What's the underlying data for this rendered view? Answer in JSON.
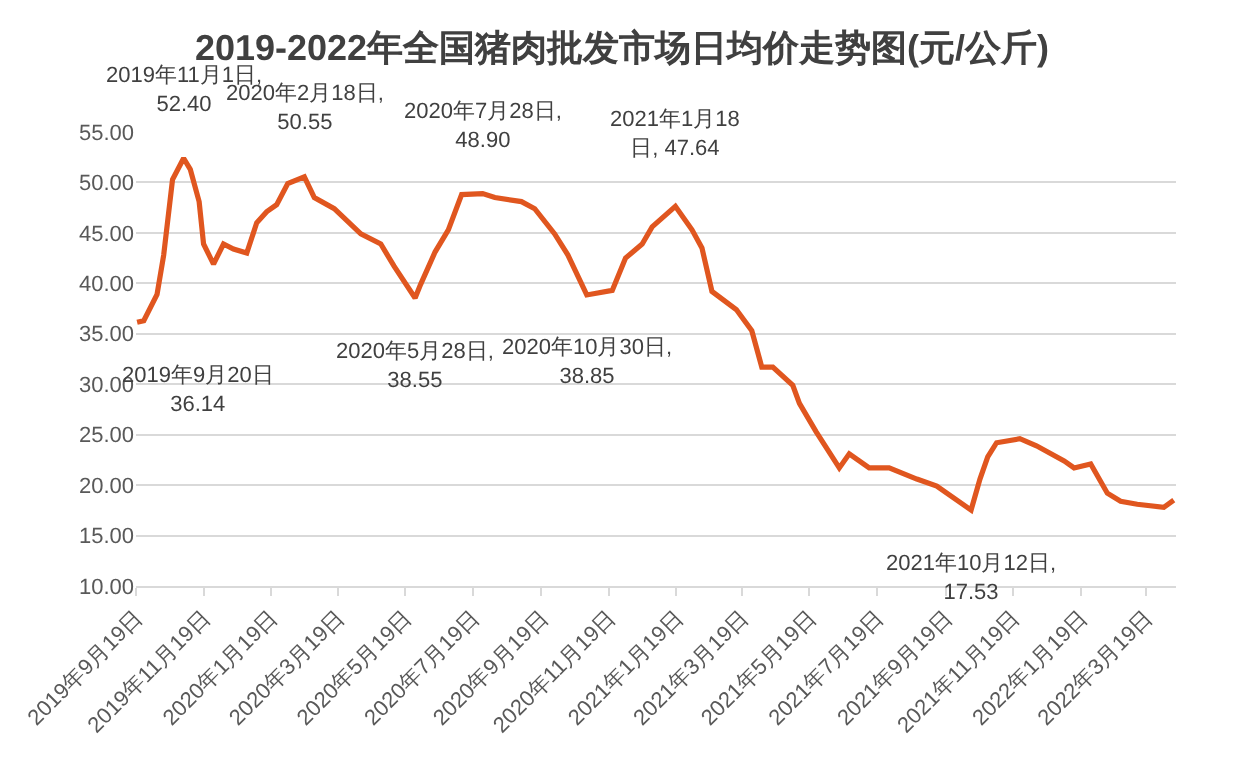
{
  "chart_data": {
    "type": "line",
    "title": "2019-2022年全国猪肉批发市场日均价走势图(元/公斤)",
    "x": [
      "2019-09-20",
      "2019-09-26",
      "2019-10-08",
      "2019-10-14",
      "2019-10-22",
      "2019-11-01",
      "2019-11-07",
      "2019-11-15",
      "2019-11-19",
      "2019-11-28",
      "2019-12-07",
      "2019-12-16",
      "2019-12-28",
      "2020-01-06",
      "2020-01-15",
      "2020-01-24",
      "2020-02-03",
      "2020-02-18",
      "2020-02-27",
      "2020-03-16",
      "2020-04-09",
      "2020-04-27",
      "2020-05-09",
      "2020-05-28",
      "2020-06-02",
      "2020-06-15",
      "2020-06-27",
      "2020-07-09",
      "2020-07-28",
      "2020-08-08",
      "2020-09-01",
      "2020-09-13",
      "2020-10-01",
      "2020-10-13",
      "2020-10-30",
      "2020-11-22",
      "2020-12-04",
      "2020-12-19",
      "2020-12-28",
      "2021-01-18",
      "2021-02-02",
      "2021-02-11",
      "2021-02-20",
      "2021-03-14",
      "2021-03-28",
      "2021-04-06",
      "2021-04-16",
      "2021-05-04",
      "2021-05-10",
      "2021-05-25",
      "2021-06-15",
      "2021-06-24",
      "2021-07-12",
      "2021-07-30",
      "2021-08-24",
      "2021-09-11",
      "2021-10-12",
      "2021-10-20",
      "2021-10-27",
      "2021-11-04",
      "2021-11-25",
      "2021-12-10",
      "2022-01-04",
      "2022-01-13",
      "2022-01-28",
      "2022-02-12",
      "2022-02-24",
      "2022-03-11",
      "2022-04-04",
      "2022-04-13"
    ],
    "series": [
      {
        "color": "#e0561f",
        "values": [
          36.14,
          36.3,
          38.9,
          42.8,
          50.3,
          52.4,
          51.3,
          48.1,
          43.9,
          41.9,
          43.9,
          43.4,
          43.0,
          46.0,
          47.1,
          47.8,
          49.9,
          50.55,
          48.5,
          47.4,
          44.9,
          43.9,
          41.7,
          38.55,
          39.9,
          43.1,
          45.3,
          48.8,
          48.9,
          48.5,
          48.1,
          47.4,
          44.9,
          42.8,
          38.85,
          39.3,
          42.5,
          43.9,
          45.6,
          47.64,
          45.3,
          43.5,
          39.2,
          37.4,
          35.3,
          31.7,
          31.7,
          29.9,
          28.1,
          25.3,
          21.7,
          23.1,
          21.7,
          21.7,
          20.6,
          19.9,
          17.53,
          20.6,
          22.8,
          24.2,
          24.6,
          23.9,
          22.4,
          21.7,
          22.1,
          19.2,
          18.4,
          18.1,
          17.8,
          18.5
        ]
      }
    ],
    "xlim": [
      "2019-09-19",
      "2022-04-15"
    ],
    "xticks": [
      {
        "value": "2019-09-19",
        "label": "2019年9月19日"
      },
      {
        "value": "2019-11-19",
        "label": "2019年11月19日"
      },
      {
        "value": "2020-01-19",
        "label": "2020年1月19日"
      },
      {
        "value": "2020-03-19",
        "label": "2020年3月19日"
      },
      {
        "value": "2020-05-19",
        "label": "2020年5月19日"
      },
      {
        "value": "2020-07-19",
        "label": "2020年7月19日"
      },
      {
        "value": "2020-09-19",
        "label": "2020年9月19日"
      },
      {
        "value": "2020-11-19",
        "label": "2020年11月19日"
      },
      {
        "value": "2021-01-19",
        "label": "2021年1月19日"
      },
      {
        "value": "2021-03-19",
        "label": "2021年3月19日"
      },
      {
        "value": "2021-05-19",
        "label": "2021年5月19日"
      },
      {
        "value": "2021-07-19",
        "label": "2021年7月19日"
      },
      {
        "value": "2021-09-19",
        "label": "2021年9月19日"
      },
      {
        "value": "2021-11-19",
        "label": "2021年11月19日"
      },
      {
        "value": "2022-01-19",
        "label": "2022年1月19日"
      },
      {
        "value": "2022-03-19",
        "label": "2022年3月19日"
      }
    ],
    "ylim": [
      10,
      55
    ],
    "yticks": [
      {
        "value": 10,
        "label": "10.00"
      },
      {
        "value": 15,
        "label": "15.00"
      },
      {
        "value": 20,
        "label": "20.00"
      },
      {
        "value": 25,
        "label": "25.00"
      },
      {
        "value": 30,
        "label": "30.00"
      },
      {
        "value": 35,
        "label": "35.00"
      },
      {
        "value": 40,
        "label": "40.00"
      },
      {
        "value": 45,
        "label": "45.00"
      },
      {
        "value": 50,
        "label": "50.00"
      },
      {
        "value": 55,
        "label": "55.00"
      }
    ],
    "grid": "y",
    "marker": "none",
    "line_style": "solid",
    "annotations": [
      {
        "text": "2019年9月20日\n36.14",
        "x": "2019-09-20",
        "y": 36.14
      },
      {
        "text": "2019年11月1日,\n52.40",
        "x": "2019-11-01",
        "y": 52.4
      },
      {
        "text": "2020年2月18日,\n50.55",
        "x": "2020-02-18",
        "y": 50.55
      },
      {
        "text": "2020年5月28日,\n38.55",
        "x": "2020-05-28",
        "y": 38.55
      },
      {
        "text": "2020年7月28日,\n48.90",
        "x": "2020-07-28",
        "y": 48.9
      },
      {
        "text": "2020年10月30日,\n38.85",
        "x": "2020-10-30",
        "y": 38.85
      },
      {
        "text": "2021年1月18\n日, 47.64",
        "x": "2021-01-18",
        "y": 47.64
      },
      {
        "text": "2021年10月12日,\n17.53",
        "x": "2021-10-12",
        "y": 17.53
      }
    ]
  }
}
